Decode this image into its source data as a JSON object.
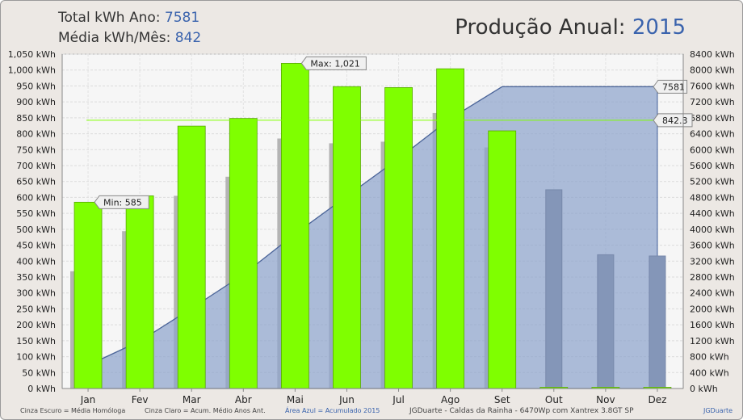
{
  "header": {
    "total_label": "Total kWh Ano:",
    "total_value": "7581",
    "avg_label": "Média kWh/Mês:",
    "avg_value": "842",
    "title_label": "Produção Anual:",
    "title_year": "2015"
  },
  "footer": {
    "legend_dark": "Cinza Escuro = Média Homóloga",
    "legend_light": "Cinza Claro = Acum. Médio Anos Ant.",
    "legend_blue": "Área Azul = Acumulado 2015",
    "site": "JGDuarte  -  Caldas da Rainha  -  6470Wp com Xantrex 3.8GT SP",
    "brand": "JGDuarte"
  },
  "colors": {
    "green_bar": "#7fff00",
    "dark_gray_bar": "#8ea0bd",
    "light_gray_bar": "#b4b4b4",
    "cumulative_area": "#8ea3cc",
    "average_line": "#7fff00",
    "header_value": "#3a63ad"
  },
  "chart_data": {
    "type": "bar",
    "categories": [
      "Jan",
      "Fev",
      "Mar",
      "Abr",
      "Mai",
      "Jun",
      "Jul",
      "Ago",
      "Set",
      "Out",
      "Nov",
      "Dez"
    ],
    "series": [
      {
        "name": "Produção 2015",
        "values": [
          585,
          605,
          824,
          848,
          1021,
          948,
          945,
          1004,
          809,
          0,
          0,
          0
        ]
      },
      {
        "name": "Média Homóloga",
        "values": [
          0,
          0,
          0,
          0,
          0,
          0,
          0,
          0,
          0,
          624,
          420,
          416
        ]
      },
      {
        "name": "Acum. Médio Anos Ant.",
        "values": [
          368,
          494,
          605,
          665,
          785,
          770,
          775,
          865,
          757,
          0,
          0,
          0
        ]
      },
      {
        "name": "Acumulado 2015",
        "axis": "right",
        "values": [
          585,
          1190,
          2014,
          2862,
          3883,
          4831,
          5776,
          6780,
          7581,
          7581,
          7581,
          7581
        ]
      }
    ],
    "average_line": {
      "value": 842.3,
      "label": "842.3"
    },
    "total_label": "7581",
    "max_annotation": "Max: 1,021",
    "min_annotation": "Min: 585",
    "y_left": {
      "min": 0,
      "max": 1050,
      "step": 50,
      "unit": "kWh"
    },
    "y_right": {
      "min": 0,
      "max": 8400,
      "step": 400,
      "unit": "kWh"
    },
    "grid": true
  }
}
